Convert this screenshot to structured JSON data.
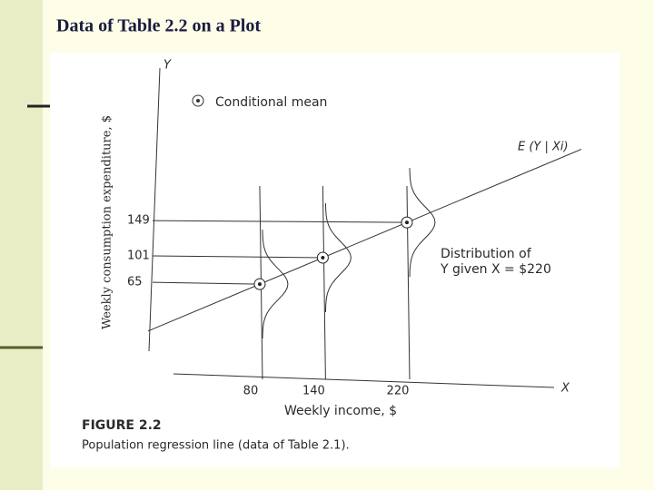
{
  "slide": {
    "title": "Data of Table 2.2 on a Plot"
  },
  "chart_data": {
    "type": "scatter",
    "y_axis_name": "Y",
    "x_axis_name": "X",
    "xlabel": "Weekly income, $",
    "ylabel": "Weekly consumption expenditure, $",
    "legend": "Conditional mean",
    "line_label": "E (Y | Xi)",
    "annotation": [
      "Distribution of",
      "Y given X = $220"
    ],
    "caption_title": "FIGURE 2.2",
    "caption": "Population regression line (data of Table 2.1).",
    "x": [
      80,
      140,
      220
    ],
    "values": [
      65,
      101,
      149
    ],
    "xlim": [
      -15,
      360
    ],
    "ylim": [
      -57,
      359
    ],
    "xticks": [
      80,
      140,
      220
    ],
    "yticks": [
      65,
      101,
      149
    ],
    "color": "#222222"
  }
}
